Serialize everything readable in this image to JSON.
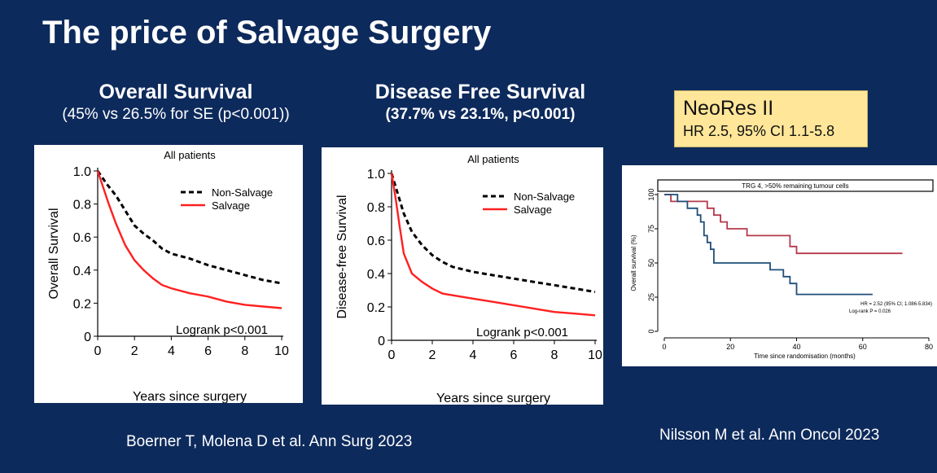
{
  "slide": {
    "title": "The price of Salvage Surgery",
    "os_heading": "Overall Survival",
    "os_subheading": "(45% vs 26.5% for SE (p<0.001))",
    "dfs_heading": "Disease Free Survival",
    "dfs_subheading": "(37.7% vs 23.1%, p<0.001)",
    "neores_title": "NeoRes II",
    "neores_hr": "HR 2.5, 95% CI 1.1-5.8",
    "citation_left": "Boerner T, Molena D et al. Ann Surg 2023",
    "citation_right": "Nilsson M et al. Ann Oncol 2023"
  },
  "colors": {
    "background": "#0d2a5c",
    "salvage": "#ff2020",
    "non_salvage": "#000000",
    "trg_red": "#b5394a",
    "trg_blue": "#1f4e79",
    "box_fill": "#ffe699"
  },
  "chart_data": [
    {
      "type": "line",
      "title": "All patients",
      "xlabel": "Years since surgery",
      "ylabel": "Overall Survival",
      "xlim": [
        0,
        10
      ],
      "ylim": [
        0,
        1
      ],
      "xticks": [
        "0",
        "2",
        "4",
        "6",
        "8",
        "10"
      ],
      "yticks": [
        "0",
        "0.2",
        "0.4",
        "0.6",
        "0.8",
        "1.0"
      ],
      "annotation": "Logrank p<0.001",
      "series": [
        {
          "name": "Non-Salvage",
          "style": "dashed",
          "x": [
            0,
            0.5,
            1,
            1.5,
            2,
            2.5,
            3,
            3.5,
            4,
            5,
            6,
            7,
            8,
            9,
            10
          ],
          "y": [
            1.0,
            0.92,
            0.85,
            0.76,
            0.67,
            0.62,
            0.58,
            0.53,
            0.5,
            0.47,
            0.43,
            0.4,
            0.37,
            0.34,
            0.32
          ]
        },
        {
          "name": "Salvage",
          "style": "solid",
          "x": [
            0,
            0.3,
            0.6,
            1,
            1.5,
            2,
            2.5,
            3,
            3.5,
            4,
            5,
            6,
            7,
            8,
            9,
            10
          ],
          "y": [
            1.0,
            0.9,
            0.8,
            0.68,
            0.55,
            0.46,
            0.4,
            0.35,
            0.31,
            0.29,
            0.26,
            0.24,
            0.21,
            0.19,
            0.18,
            0.17
          ]
        }
      ]
    },
    {
      "type": "line",
      "title": "All patients",
      "xlabel": "Years since surgery",
      "ylabel": "Disease-free Survival",
      "xlim": [
        0,
        10
      ],
      "ylim": [
        0,
        1
      ],
      "xticks": [
        "0",
        "2",
        "4",
        "6",
        "8",
        "10"
      ],
      "yticks": [
        "0",
        "0.2",
        "0.4",
        "0.6",
        "0.8",
        "1.0"
      ],
      "annotation": "Logrank p<0.001",
      "series": [
        {
          "name": "Non-Salvage",
          "style": "dashed",
          "x": [
            0,
            0.3,
            0.6,
            1,
            1.5,
            2,
            2.5,
            3,
            4,
            5,
            6,
            7,
            8,
            9,
            10
          ],
          "y": [
            1.0,
            0.88,
            0.76,
            0.65,
            0.57,
            0.51,
            0.47,
            0.44,
            0.41,
            0.39,
            0.37,
            0.35,
            0.33,
            0.31,
            0.29
          ]
        },
        {
          "name": "Salvage",
          "style": "solid",
          "x": [
            0,
            0.2,
            0.4,
            0.6,
            1,
            1.5,
            2,
            2.5,
            3,
            4,
            5,
            6,
            7,
            8,
            9,
            10
          ],
          "y": [
            1.0,
            0.85,
            0.68,
            0.52,
            0.4,
            0.35,
            0.31,
            0.28,
            0.27,
            0.25,
            0.23,
            0.21,
            0.19,
            0.17,
            0.16,
            0.15
          ]
        }
      ]
    },
    {
      "type": "line",
      "title": "TRG 4, >50% remaining tumour cells",
      "xlabel": "Time since randomisation (months)",
      "ylabel": "Overall survival (%)",
      "xlim": [
        0,
        80
      ],
      "ylim": [
        0,
        100
      ],
      "xticks": [
        "0",
        "20",
        "40",
        "60",
        "80"
      ],
      "yticks": [
        "0",
        "25",
        "50",
        "75",
        "100"
      ],
      "annotation_1": "HR = 2.52 (95% CI; 1.086-5.834)",
      "annotation_2": "Log-rank P = 0.026",
      "series": [
        {
          "name": "red",
          "style": "step",
          "x": [
            0,
            2,
            4,
            10,
            13,
            15,
            17,
            19,
            25,
            38,
            40,
            72
          ],
          "y": [
            100,
            95,
            95,
            95,
            90,
            85,
            80,
            75,
            70,
            62,
            57,
            57
          ]
        },
        {
          "name": "blue",
          "style": "step",
          "x": [
            0,
            2,
            4,
            7,
            10,
            11,
            12,
            13,
            14,
            15,
            28,
            32,
            36,
            38,
            40,
            63
          ],
          "y": [
            100,
            100,
            95,
            90,
            85,
            80,
            70,
            65,
            60,
            50,
            50,
            45,
            40,
            35,
            27,
            27
          ]
        }
      ]
    }
  ]
}
